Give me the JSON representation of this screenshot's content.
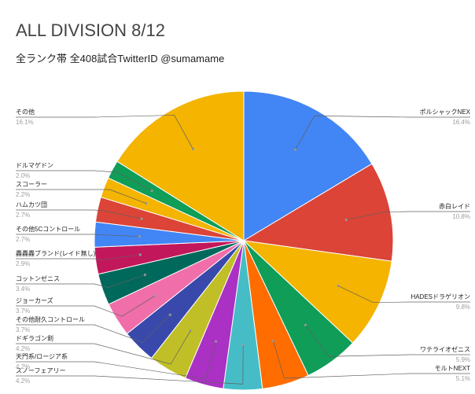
{
  "title": "ALL DIVISION 8/12",
  "subtitle": "全ランク帯 全408試合TwitterID @sumamame",
  "chart_data": {
    "type": "pie",
    "title": "ALL DIVISION 8/12",
    "subtitle": "全ランク帯 全408試合TwitterID @sumamame",
    "slices": [
      {
        "label": "ポルシャックNEX",
        "pct_text": "16.4%",
        "value": 16.4,
        "color": "#4285F4"
      },
      {
        "label": "赤白レイド",
        "pct_text": "10.8%",
        "value": 10.8,
        "color": "#DB4437"
      },
      {
        "label": "HADESドラゲリオン",
        "pct_text": "9.8%",
        "value": 9.8,
        "color": "#F4B400"
      },
      {
        "label": "ワテライオゼニス",
        "pct_text": "5.9%",
        "value": 5.9,
        "color": "#0F9D58"
      },
      {
        "label": "モルトNEXT",
        "pct_text": "5.1%",
        "value": 5.1,
        "color": "#FF6D01"
      },
      {
        "label": "スノーフェアリー",
        "pct_text": "4.2%",
        "value": 4.2,
        "color": "#46BDC6"
      },
      {
        "label": "天門系/ロージア系",
        "pct_text": "4.2%",
        "value": 4.2,
        "color": "#AB30C4"
      },
      {
        "label": "ドギラゴン剣",
        "pct_text": "4.2%",
        "value": 4.2,
        "color": "#C0BF27"
      },
      {
        "label": "その他耐久コントロール",
        "pct_text": "3.7%",
        "value": 3.7,
        "color": "#3949AB"
      },
      {
        "label": "ジョーカーズ",
        "pct_text": "3.7%",
        "value": 3.7,
        "color": "#F06EA9"
      },
      {
        "label": "コットンゼニス",
        "pct_text": "3.4%",
        "value": 3.4,
        "color": "#00695C"
      },
      {
        "label": "轟轟轟ブランド(レイド無し)",
        "pct_text": "2.9%",
        "value": 2.9,
        "color": "#C2185B"
      },
      {
        "label": "その他5Cコントロール",
        "pct_text": "2.7%",
        "value": 2.7,
        "color": "#4285F4"
      },
      {
        "label": "ハムカツ団",
        "pct_text": "2.7%",
        "value": 2.7,
        "color": "#DB4437"
      },
      {
        "label": "スコーラー",
        "pct_text": "2.2%",
        "value": 2.2,
        "color": "#F4B400"
      },
      {
        "label": "ドルマゲドン",
        "pct_text": "2.0%",
        "value": 2.0,
        "color": "#0F9D58"
      },
      {
        "label": "その他",
        "pct_text": "16.1%",
        "value": 16.1,
        "color": "#F4B400"
      }
    ]
  }
}
